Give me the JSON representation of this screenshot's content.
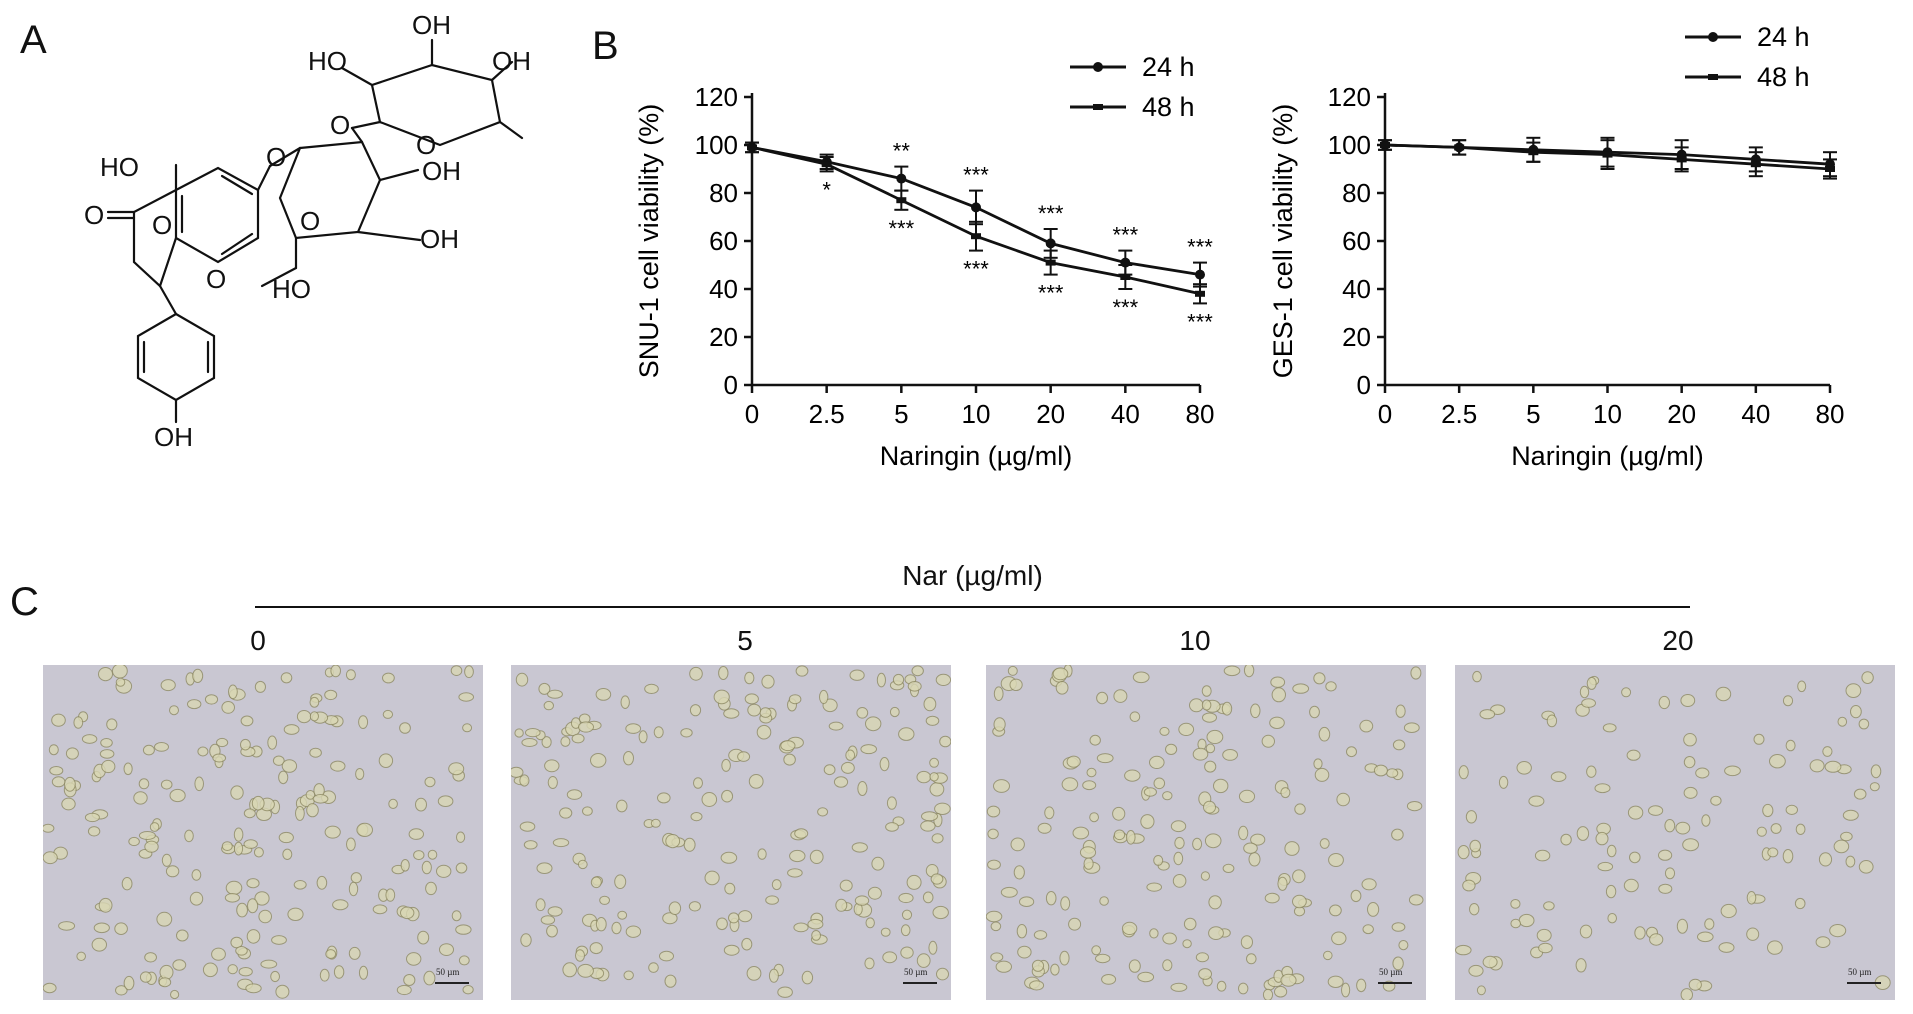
{
  "panels": {
    "a": "A",
    "b": "B",
    "c": "C"
  },
  "structure": {
    "labels": [
      "OH",
      "HO",
      "OH",
      "HO",
      "O",
      "O",
      "O",
      "O",
      "OH",
      "O",
      "OH",
      "HO",
      "O",
      "O",
      "OH"
    ]
  },
  "chart_data": [
    {
      "type": "line",
      "ylabel": "SNU-1 cell viability (%)",
      "xlabel": "Naringin (µg/ml)",
      "categories": [
        "0",
        "2.5",
        "5",
        "10",
        "20",
        "40",
        "80"
      ],
      "ylim": [
        0,
        120
      ],
      "yticks": [
        "0",
        "20",
        "40",
        "60",
        "80",
        "100",
        "120"
      ],
      "legend_position": "top-right",
      "series": [
        {
          "name": "24 h",
          "values": [
            99,
            93,
            86,
            74,
            59,
            51,
            46
          ],
          "errors": [
            2,
            3,
            5,
            7,
            6,
            5,
            5
          ]
        },
        {
          "name": "48 h",
          "values": [
            99,
            92,
            77,
            62,
            51,
            45,
            38
          ],
          "errors": [
            2,
            3,
            4,
            6,
            5,
            5,
            4
          ]
        }
      ],
      "annotations": {
        "upper": [
          "",
          "",
          "**",
          "***",
          "***",
          "***",
          "***"
        ],
        "lower": [
          "",
          "*",
          "***",
          "***",
          "***",
          "***",
          "***"
        ]
      }
    },
    {
      "type": "line",
      "ylabel": "GES-1 cell viability (%)",
      "xlabel": "Naringin (µg/ml)",
      "categories": [
        "0",
        "2.5",
        "5",
        "10",
        "20",
        "40",
        "80"
      ],
      "ylim": [
        0,
        120
      ],
      "yticks": [
        "0",
        "20",
        "40",
        "60",
        "80",
        "100",
        "120"
      ],
      "legend_position": "top-right",
      "series": [
        {
          "name": "24 h",
          "values": [
            100,
            99,
            98,
            97,
            96,
            94,
            92
          ],
          "errors": [
            2,
            3,
            5,
            6,
            6,
            5,
            5
          ]
        },
        {
          "name": "48 h",
          "values": [
            100,
            99,
            97,
            96,
            94,
            92,
            90
          ],
          "errors": [
            2,
            3,
            4,
            6,
            5,
            5,
            4
          ]
        }
      ]
    }
  ],
  "micrographs": {
    "title": "Nar (µg/ml)",
    "items": [
      {
        "label": "0",
        "scalebar": "50 µm"
      },
      {
        "label": "5",
        "scalebar": "50 µm"
      },
      {
        "label": "10",
        "scalebar": "50 µm"
      },
      {
        "label": "20",
        "scalebar": "50 µm"
      }
    ]
  }
}
